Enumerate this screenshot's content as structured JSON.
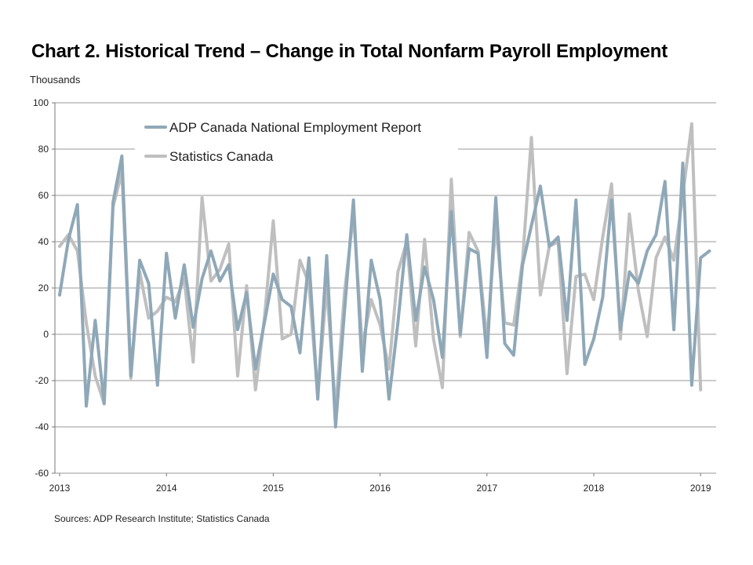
{
  "chart_data": {
    "type": "line",
    "title": "Chart 2. Historical Trend – Change in Total Nonfarm Payroll Employment",
    "ylabel": "Thousands",
    "xlabel": "",
    "ylim": [
      -60,
      100
    ],
    "yticks": [
      "100",
      "80",
      "60",
      "40",
      "20",
      "0",
      "-20",
      "-40",
      "-60"
    ],
    "xticks": [
      "2013",
      "2014",
      "2015",
      "2016",
      "2017",
      "2018",
      "2019"
    ],
    "grid": true,
    "legend_position": "top-left",
    "series": [
      {
        "name": "ADP Canada National Employment Report",
        "color": "#8fa8b8",
        "values": [
          17,
          41,
          56,
          -31,
          6,
          -30,
          57,
          77,
          -18,
          32,
          22,
          -22,
          35,
          7,
          30,
          3,
          24,
          36,
          23,
          30,
          2,
          18,
          -15,
          5,
          26,
          15,
          12,
          -8,
          33,
          -28,
          34,
          -40,
          10,
          58,
          -16,
          32,
          15,
          -28,
          5,
          43,
          6,
          29,
          15,
          -10,
          53,
          0,
          37,
          35,
          -10,
          59,
          -4,
          -9,
          30,
          47,
          64,
          38,
          42,
          6,
          58,
          -13,
          -2,
          16,
          58,
          2,
          27,
          22,
          36,
          43,
          66,
          2,
          74,
          -22,
          33,
          36
        ]
      },
      {
        "name": "Statistics Canada",
        "color": "#bfbfbf",
        "values": [
          38,
          43,
          36,
          5,
          -18,
          -30,
          55,
          70,
          -19,
          27,
          7,
          10,
          16,
          14,
          24,
          -12,
          59,
          23,
          28,
          39,
          -18,
          21,
          -24,
          7,
          49,
          -2,
          0,
          32,
          22,
          -27,
          21,
          -33,
          18,
          52,
          -5,
          15,
          4,
          -15,
          27,
          40,
          -5,
          41,
          -2,
          -23,
          67,
          -1,
          44,
          36,
          -3,
          48,
          5,
          4,
          32,
          85,
          17,
          38,
          40,
          -17,
          25,
          26,
          15,
          42,
          65,
          -2,
          52,
          19,
          -1,
          33,
          42,
          32,
          60,
          91,
          -24
        ]
      }
    ],
    "sources": "Sources: ADP Research Institute; Statistics Canada"
  }
}
